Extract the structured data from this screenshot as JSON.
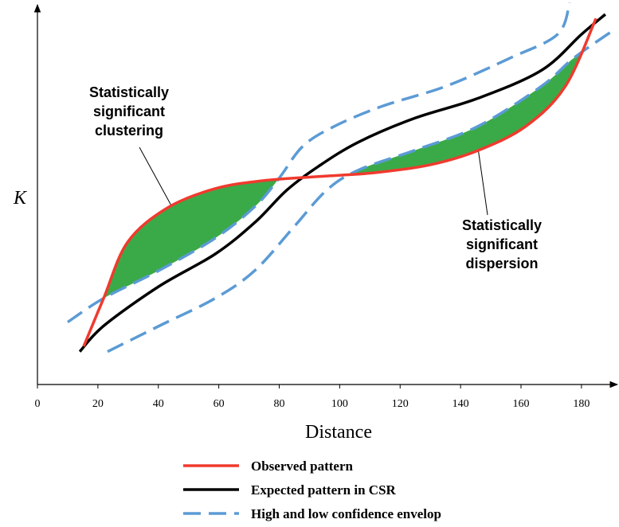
{
  "chart_data": {
    "type": "line",
    "x_label": "Distance",
    "y_label": "K",
    "xlim": [
      0,
      192
    ],
    "ylim": [
      0,
      100
    ],
    "xticks": [
      0,
      20,
      40,
      60,
      80,
      100,
      120,
      140,
      160,
      180
    ],
    "fill_color": "#3aaa48",
    "annotations": [
      {
        "lines": [
          "Statistically",
          "significant",
          "clustering"
        ]
      },
      {
        "lines": [
          "Statistically",
          "significant",
          "dispersion"
        ]
      }
    ],
    "series": [
      {
        "name": "Observed pattern",
        "color": "#f03a2e",
        "x": [
          15.3,
          21.9,
          29.8,
          43,
          58.8,
          74.6,
          93,
          111.5,
          129.9,
          145.8,
          161.6,
          174.7,
          184.8
        ],
        "values": [
          10.1,
          22.8,
          37.6,
          46.7,
          51.8,
          53.9,
          55,
          56,
          58.1,
          61.9,
          68.3,
          78.9,
          96.8
        ]
      },
      {
        "name": "Expected pattern in CSR",
        "color": "#000000",
        "x": [
          14,
          21.9,
          40.3,
          58.8,
          72,
          82.5,
          93,
          106.2,
          124.7,
          145.8,
          166.8,
          180,
          187.9
        ],
        "values": [
          8.7,
          15.5,
          26,
          34.5,
          42.9,
          51.4,
          57.7,
          64.1,
          70.4,
          75.7,
          83.1,
          92.6,
          97.9
        ]
      },
      {
        "name": "High and low confidence envelop",
        "color": "#5b9bd5",
        "dashed": true,
        "x": [
          10,
          21.9,
          40.3,
          58.8,
          72,
          79.9,
          87.8,
          98.3,
          114.1,
          135.2,
          156.3,
          172.1,
          176.1
        ],
        "values": [
          16.5,
          22.8,
          30.2,
          38.7,
          47.1,
          54.5,
          63,
          68.3,
          73.6,
          78.9,
          86.3,
          92.6,
          101
        ]
      },
      {
        "color": "#5b9bd5",
        "dashed": true,
        "x": [
          23.2,
          40.3,
          58.8,
          72,
          85.1,
          95.7,
          106.2,
          124.7,
          145.8,
          166.8,
          177.4,
          190.6
        ],
        "values": [
          8.7,
          15.5,
          22.8,
          30.2,
          41.9,
          51.4,
          56.7,
          61.9,
          68.3,
          78.9,
          86.3,
          93.7
        ]
      }
    ]
  }
}
